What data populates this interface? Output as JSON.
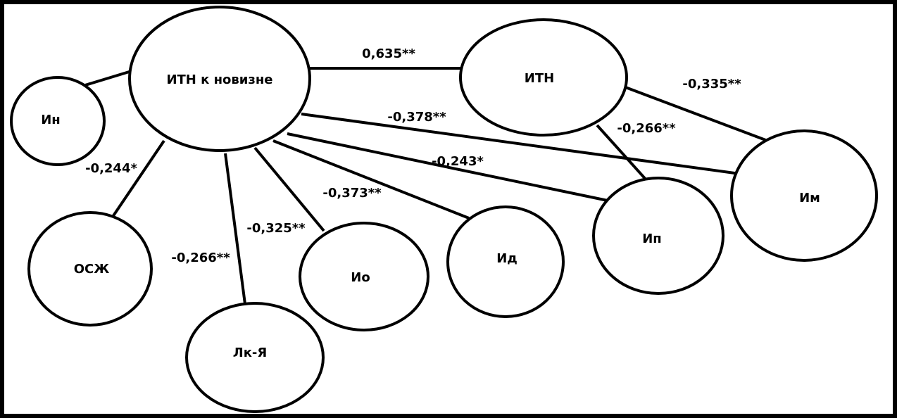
{
  "nodes": {
    "itn_novelty": "ИТН к новизне",
    "itn": "ИТН",
    "in": "Ин",
    "osj": "ОСЖ",
    "lk": "Лк-Я",
    "io": "Ио",
    "id": "Ид",
    "ip": "Ип",
    "im": "Им"
  },
  "edges": {
    "itn_novelty__itn": "0,635**",
    "itn__im": "-0,335**",
    "itn__ip": "-0,266**",
    "itn_novelty__im": "-0,378**",
    "itn_novelty__ip": "-0,243*",
    "itn_novelty__id": "-0,373**",
    "itn_novelty__io": "-0,325**",
    "itn_novelty__lk": "-0,266**",
    "itn_novelty__osj": "-0,244*",
    "itn_novelty__in": ""
  }
}
